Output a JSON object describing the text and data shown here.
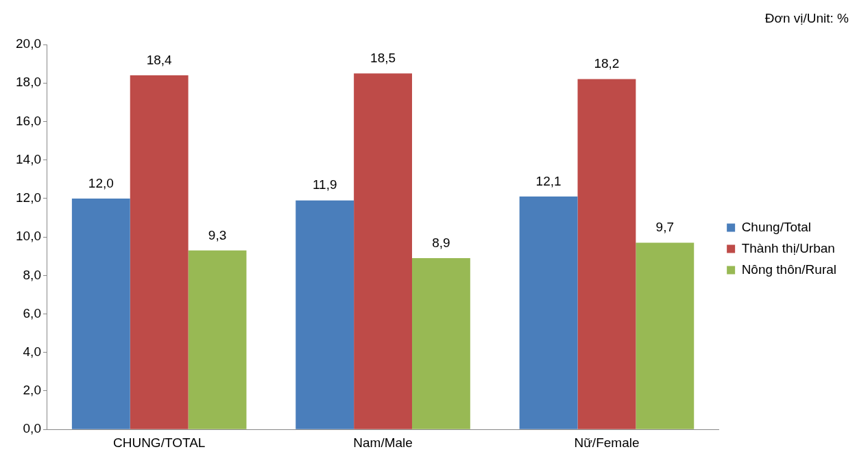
{
  "chart_data": {
    "type": "bar",
    "annotations": [
      "Đơn vị/Unit: %"
    ],
    "categories": [
      "CHUNG/TOTAL",
      "Nam/Male",
      "Nữ/Female"
    ],
    "series": [
      {
        "name": "Chung/Total",
        "color": "#4a7ebb",
        "values": [
          12.0,
          11.9,
          12.1
        ],
        "value_labels": [
          "12,0",
          "11,9",
          "12,1"
        ]
      },
      {
        "name": "Thành thị/Urban",
        "color": "#be4b48",
        "values": [
          18.4,
          18.5,
          18.2
        ],
        "value_labels": [
          "18,4",
          "18,5",
          "18,2"
        ]
      },
      {
        "name": "Nông thôn/Rural",
        "color": "#98b954",
        "values": [
          9.3,
          8.9,
          9.7
        ],
        "value_labels": [
          "9,3",
          "8,9",
          "9,7"
        ]
      }
    ],
    "ylim": [
      0,
      20
    ],
    "yticks": [
      {
        "value": 0,
        "label": "0,0"
      },
      {
        "value": 2,
        "label": "2,0"
      },
      {
        "value": 4,
        "label": "4,0"
      },
      {
        "value": 6,
        "label": "6,0"
      },
      {
        "value": 8,
        "label": "8,0"
      },
      {
        "value": 10,
        "label": "10,0"
      },
      {
        "value": 12,
        "label": "12,0"
      },
      {
        "value": 14,
        "label": "14,0"
      },
      {
        "value": 16,
        "label": "16,0"
      },
      {
        "value": 18,
        "label": "18,0"
      },
      {
        "value": 20,
        "label": "20,0"
      }
    ],
    "grid": false,
    "legend": "right"
  }
}
